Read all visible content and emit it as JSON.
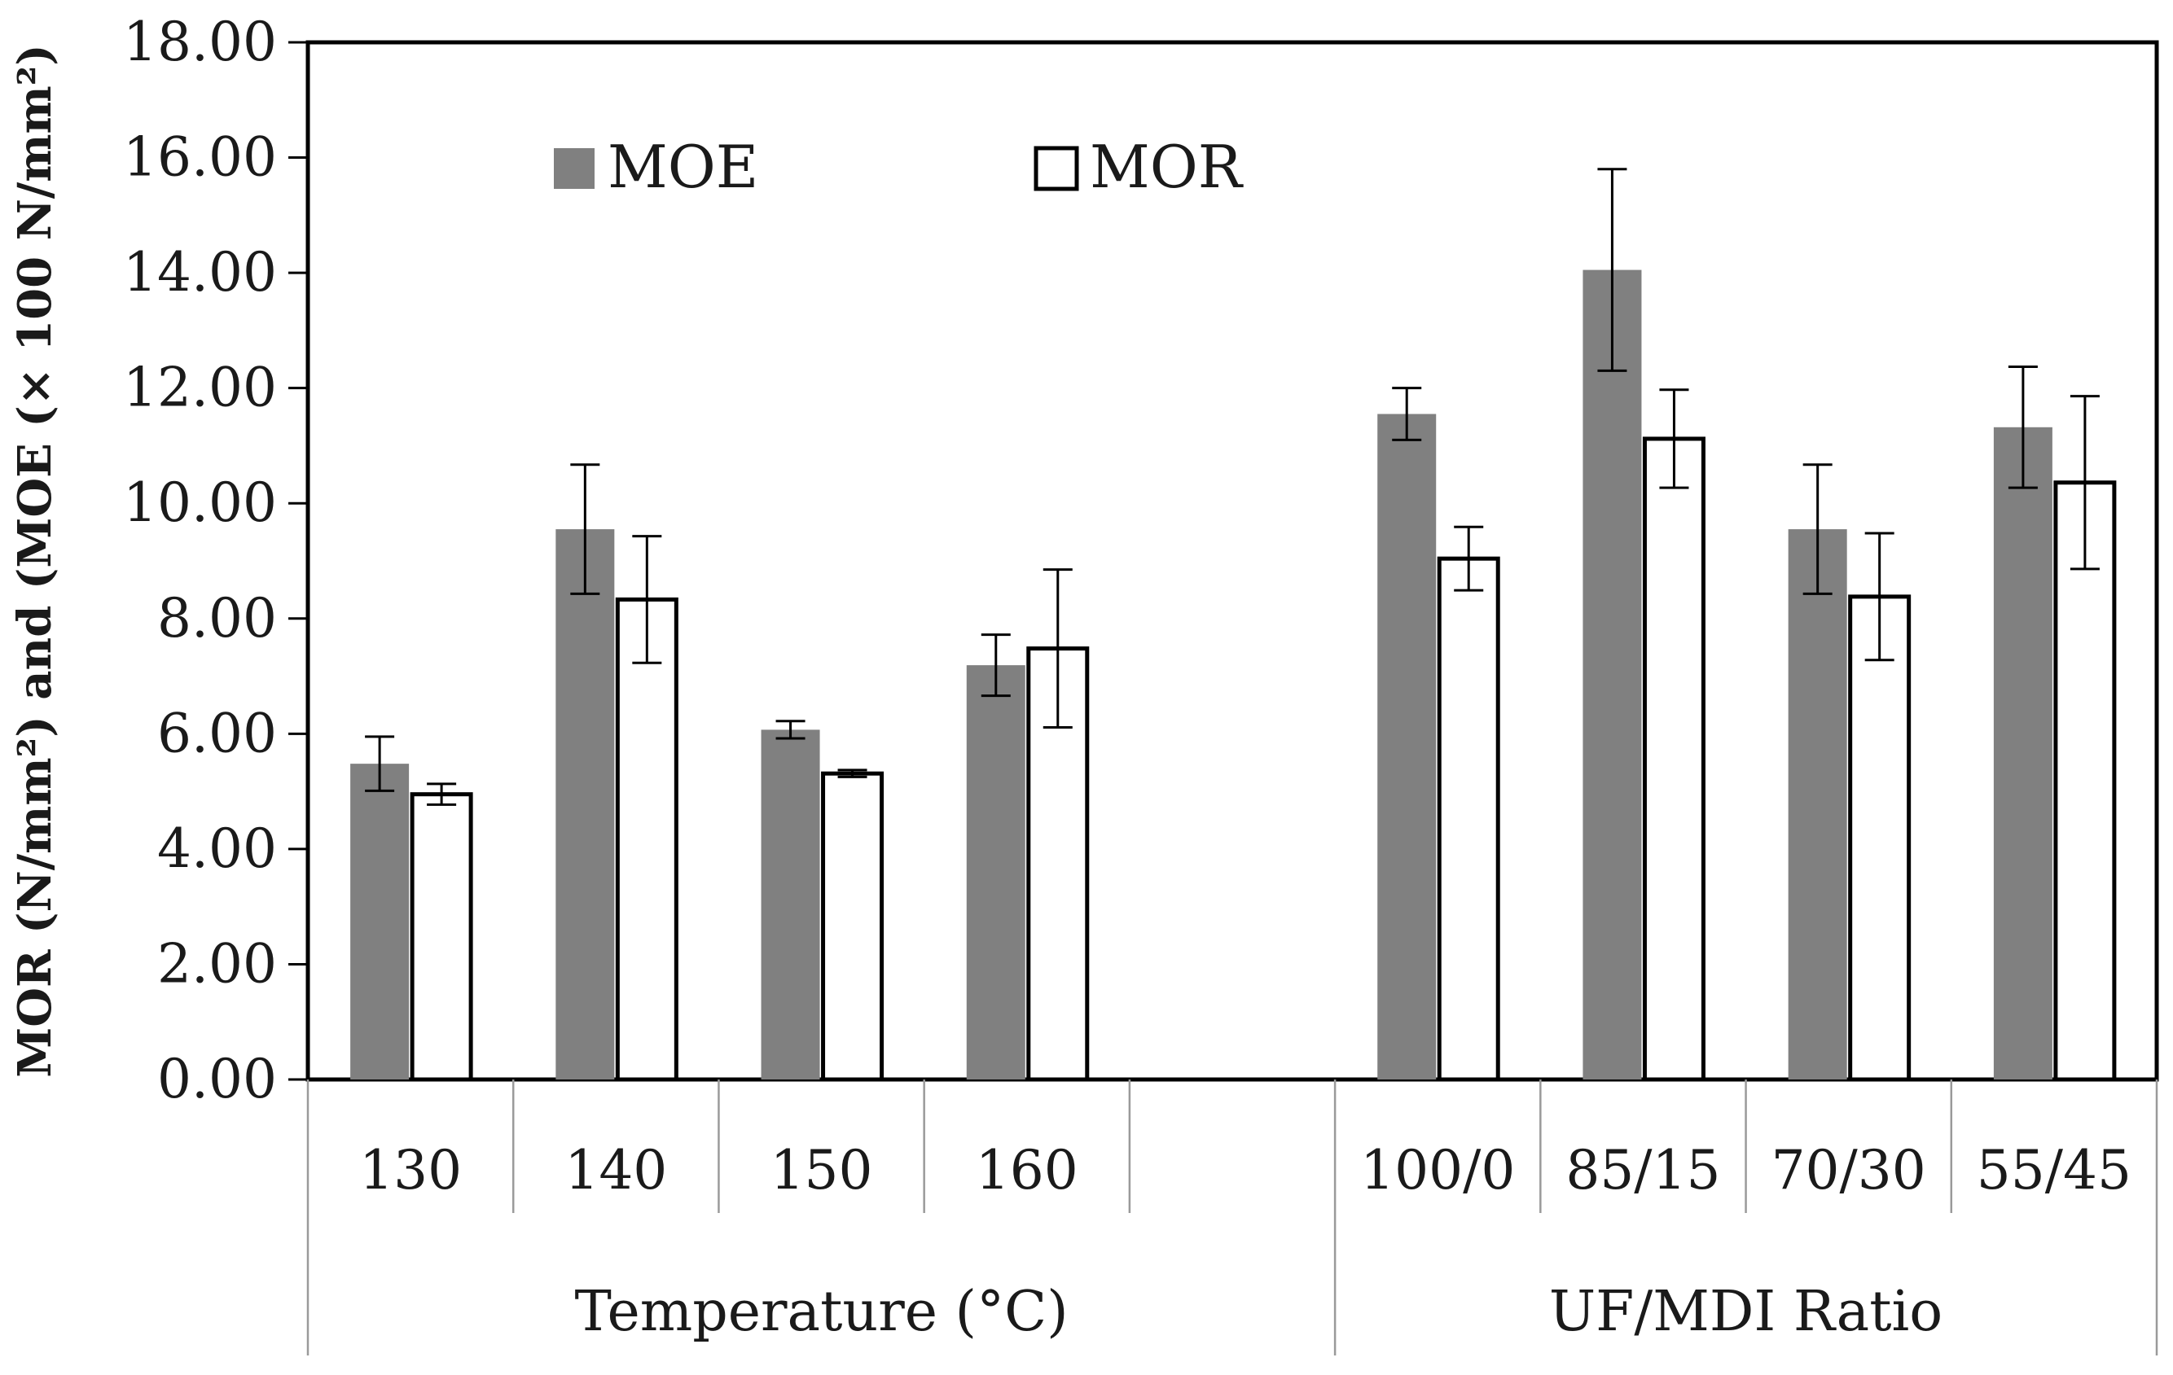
{
  "chart_data": {
    "type": "bar",
    "ylabel": "MOR (N/mm²) and (MOE (× 100 N/mm²)",
    "ylim": [
      0,
      18
    ],
    "ytick_step": 2,
    "ytick_labels": [
      "0.00",
      "2.00",
      "4.00",
      "6.00",
      "8.00",
      "10.00",
      "12.00",
      "14.00",
      "16.00",
      "18.00"
    ],
    "grid": false,
    "legend_position": "top-left",
    "categories": [
      "130",
      "140",
      "150",
      "160",
      "",
      "100/0",
      "85/15",
      "70/30",
      "55/45"
    ],
    "groups": [
      {
        "label": "Temperature (°C)",
        "categories": [
          "130",
          "140",
          "150",
          "160",
          ""
        ]
      },
      {
        "label": "UF/MDI Ratio",
        "categories": [
          "100/0",
          "85/15",
          "70/30",
          "55/45"
        ]
      }
    ],
    "series": [
      {
        "name": "MOE",
        "color": "#808080",
        "values": [
          5.48,
          9.55,
          6.07,
          7.19,
          null,
          11.55,
          14.05,
          9.55,
          11.32
        ],
        "errors": [
          0.47,
          1.12,
          0.15,
          0.53,
          null,
          0.45,
          1.75,
          1.12,
          1.05
        ]
      },
      {
        "name": "MOR",
        "color": "#ffffff",
        "values": [
          4.95,
          8.33,
          5.31,
          7.48,
          null,
          9.04,
          11.12,
          8.38,
          10.36
        ],
        "errors": [
          0.18,
          1.1,
          0.06,
          1.37,
          null,
          0.55,
          0.85,
          1.1,
          1.5
        ]
      }
    ]
  }
}
